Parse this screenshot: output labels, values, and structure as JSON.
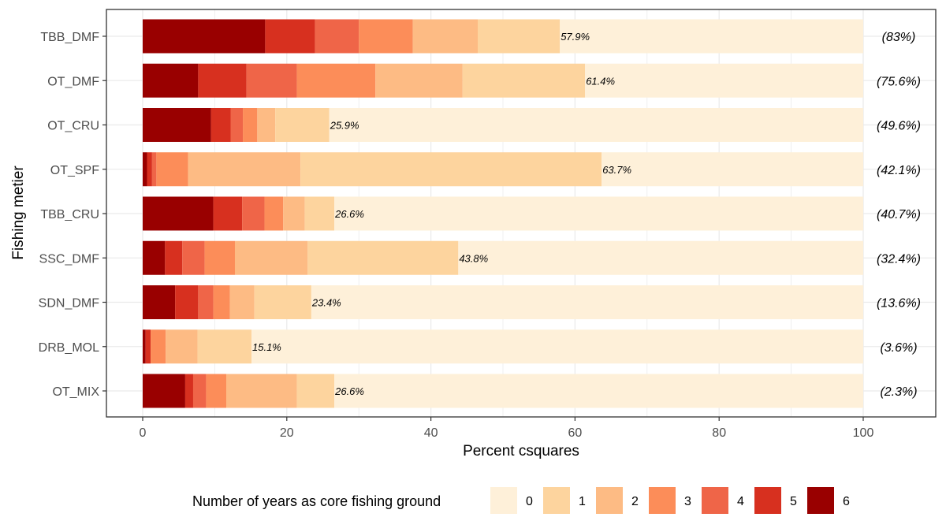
{
  "chart_data": {
    "type": "bar",
    "orientation": "horizontal",
    "stacked": true,
    "xlabel": "Percent csquares",
    "ylabel": "Fishing metier",
    "xlim": [
      0,
      100
    ],
    "xticks": [
      "0",
      "20",
      "40",
      "60",
      "80",
      "100"
    ],
    "grid": true,
    "legend": {
      "title": "Number of years as core fishing ground",
      "position": "bottom",
      "entries": [
        "0",
        "1",
        "2",
        "3",
        "4",
        "5",
        "6"
      ]
    },
    "colors": {
      "0": "#FEF0D9",
      "1": "#FDD49E",
      "2": "#FDBB84",
      "3": "#FC8D59",
      "4": "#EF6548",
      "5": "#D7301F",
      "6": "#990000"
    },
    "categories": [
      "TBB_DMF",
      "OT_DMF",
      "OT_CRU",
      "OT_SPF",
      "TBB_CRU",
      "SSC_DMF",
      "SDN_DMF",
      "DRB_MOL",
      "OT_MIX"
    ],
    "series": [
      {
        "name": "6",
        "values": [
          17.0,
          7.7,
          9.5,
          0.6,
          9.8,
          3.1,
          4.5,
          0.4,
          5.9
        ]
      },
      {
        "name": "5",
        "values": [
          6.9,
          6.7,
          2.7,
          0.7,
          4.0,
          2.4,
          3.2,
          0.7,
          1.1
        ]
      },
      {
        "name": "4",
        "values": [
          6.1,
          7.0,
          1.7,
          0.6,
          3.1,
          3.1,
          2.1,
          0.0,
          1.8
        ]
      },
      {
        "name": "3",
        "values": [
          7.5,
          10.9,
          2.0,
          4.4,
          2.6,
          4.2,
          2.3,
          2.1,
          2.8
        ]
      },
      {
        "name": "2",
        "values": [
          9.0,
          12.1,
          2.5,
          15.6,
          3.0,
          10.1,
          3.4,
          4.4,
          9.8
        ]
      },
      {
        "name": "1",
        "values": [
          11.4,
          17.0,
          7.5,
          41.8,
          4.1,
          20.9,
          7.9,
          7.5,
          5.2
        ]
      },
      {
        "name": "0",
        "values": [
          42.1,
          38.6,
          74.1,
          36.3,
          73.4,
          56.2,
          76.6,
          84.9,
          73.4
        ]
      }
    ],
    "bar_labels": [
      "57.9%",
      "61.4%",
      "25.9%",
      "63.7%",
      "26.6%",
      "43.8%",
      "23.4%",
      "15.1%",
      "26.6%"
    ],
    "right_labels": [
      "(83%)",
      "(75.6%)",
      "(49.6%)",
      "(42.1%)",
      "(40.7%)",
      "(32.4%)",
      "(13.6%)",
      "(3.6%)",
      "(2.3%)"
    ]
  }
}
